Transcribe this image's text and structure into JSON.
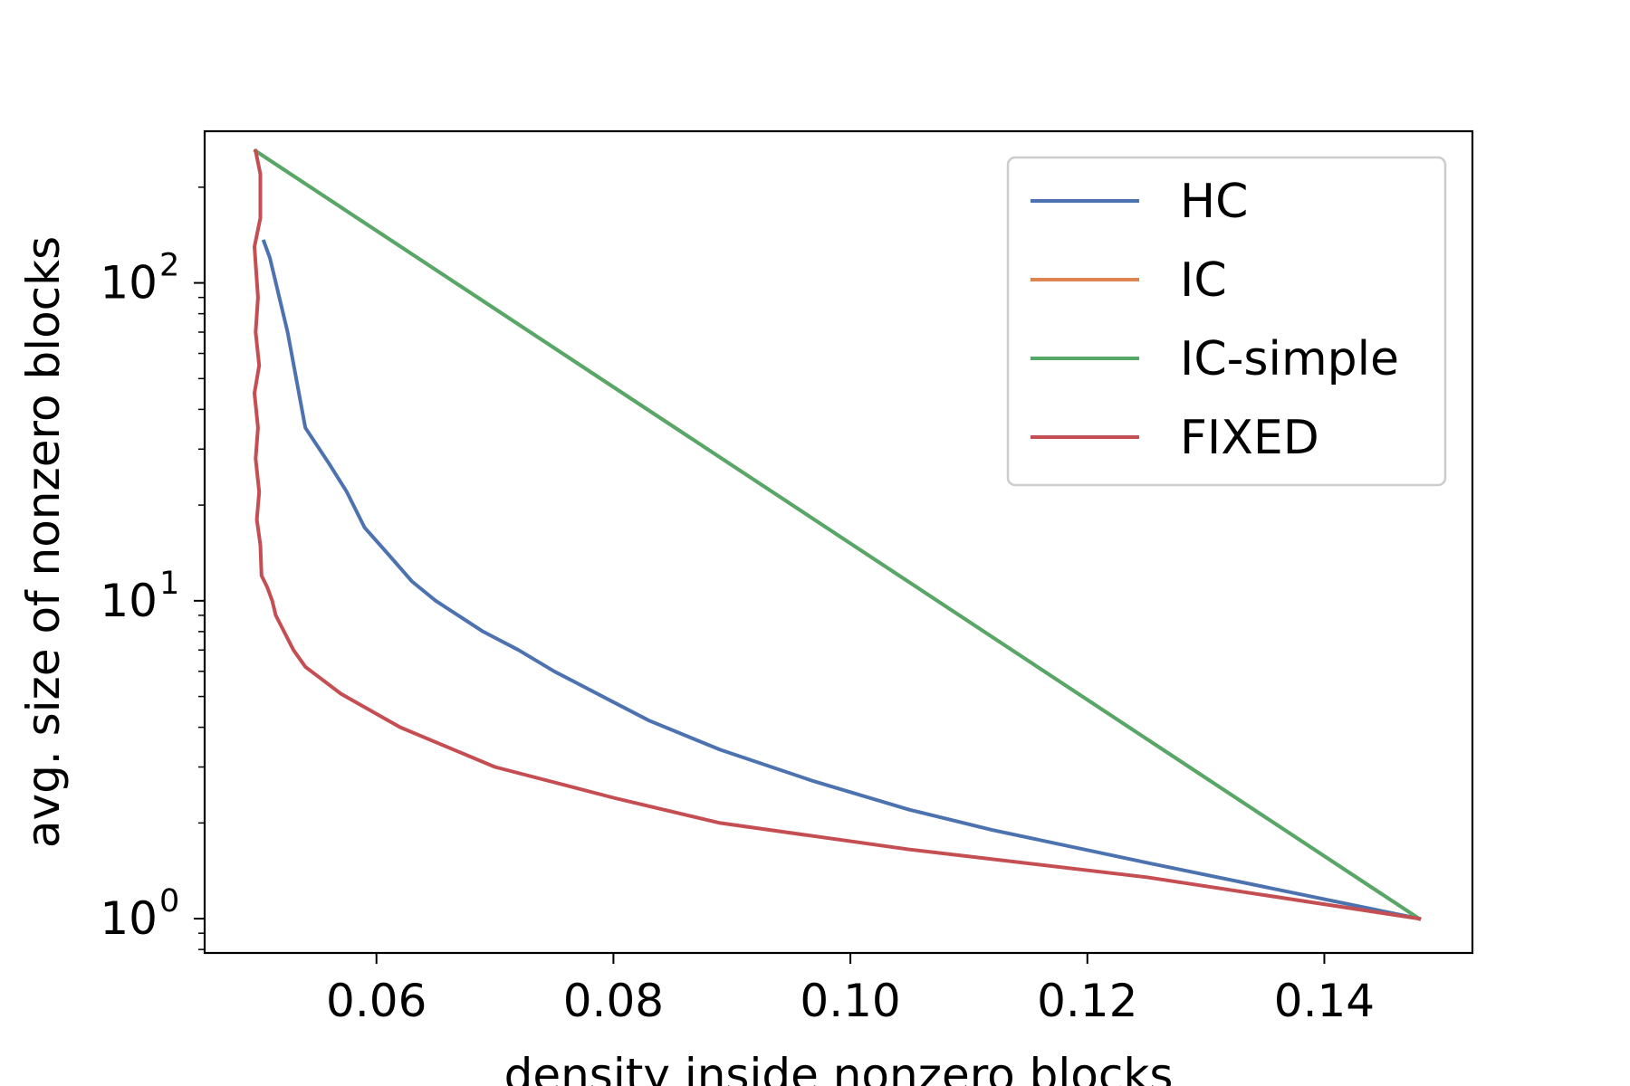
{
  "chart_data": {
    "type": "line",
    "title": "",
    "xlabel": "density inside nonzero blocks",
    "ylabel": "avg. size of nonzero blocks",
    "xlim": [
      0.0455,
      0.1525
    ],
    "ylim": [
      0.78,
      300
    ],
    "yscale": "log",
    "xticks": [
      0.06,
      0.08,
      0.1,
      0.12,
      0.14
    ],
    "xtick_labels": [
      "0.06",
      "0.08",
      "0.10",
      "0.12",
      "0.14"
    ],
    "yticks": [
      1,
      10,
      100
    ],
    "ytick_labels": [
      {
        "base": "10",
        "exp": "0"
      },
      {
        "base": "10",
        "exp": "1"
      },
      {
        "base": "10",
        "exp": "2"
      }
    ],
    "grid": false,
    "legend": "top-right",
    "series": [
      {
        "name": "HC",
        "color": "#4c72b0",
        "x": [
          0.0505,
          0.051,
          0.0525,
          0.054,
          0.056,
          0.0575,
          0.059,
          0.061,
          0.063,
          0.065,
          0.069,
          0.072,
          0.075,
          0.08,
          0.083,
          0.089,
          0.097,
          0.105,
          0.112,
          0.125,
          0.148
        ],
        "y": [
          135,
          120,
          70,
          35,
          27,
          22,
          17,
          14,
          11.5,
          10,
          8,
          7,
          6,
          4.8,
          4.2,
          3.4,
          2.7,
          2.2,
          1.9,
          1.5,
          1.0
        ]
      },
      {
        "name": "IC",
        "color": "#dd8452",
        "x": [
          0.0498,
          0.148
        ],
        "y": [
          260,
          1.0
        ]
      },
      {
        "name": "IC-simple",
        "color": "#55a868",
        "x": [
          0.0498,
          0.148
        ],
        "y": [
          260,
          1.0
        ]
      },
      {
        "name": "FIXED",
        "color": "#c44e52",
        "x": [
          0.0498,
          0.0502,
          0.0502,
          0.0497,
          0.05,
          0.0498,
          0.0501,
          0.0497,
          0.05,
          0.0498,
          0.0501,
          0.0499,
          0.0502,
          0.0503,
          0.0508,
          0.0512,
          0.0515,
          0.053,
          0.054,
          0.057,
          0.062,
          0.07,
          0.08,
          0.089,
          0.105,
          0.125,
          0.148
        ],
        "y": [
          260,
          220,
          160,
          130,
          90,
          70,
          55,
          45,
          35,
          28,
          22,
          18,
          15,
          12,
          11,
          10,
          9,
          7,
          6.2,
          5.1,
          4.0,
          3.0,
          2.4,
          2.0,
          1.65,
          1.35,
          1.0
        ]
      }
    ]
  }
}
